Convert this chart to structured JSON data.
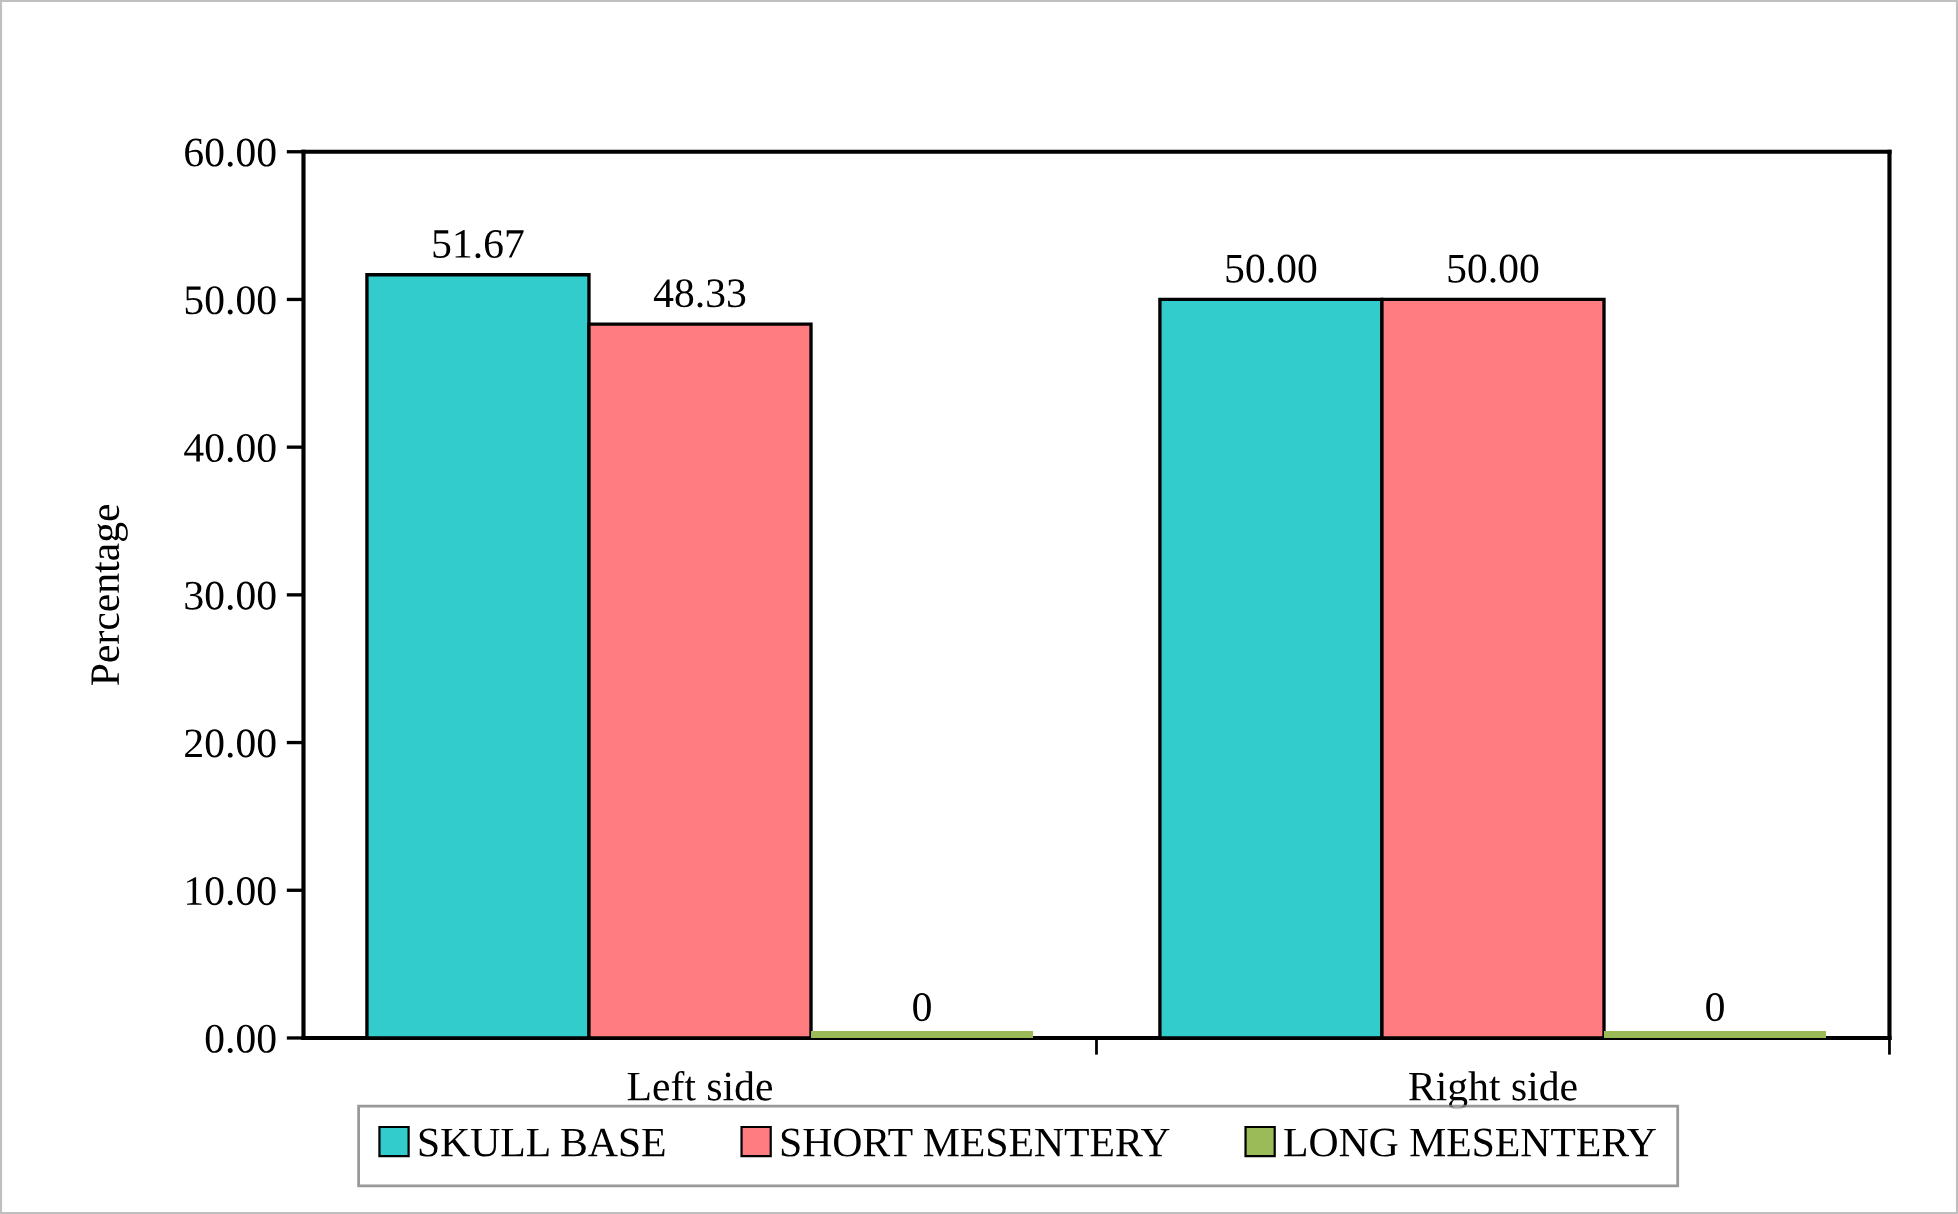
{
  "chart_data": {
    "type": "bar",
    "ylabel": "Percentage",
    "categories": [
      "Left side",
      "Right side"
    ],
    "series": [
      {
        "name": "SKULL BASE",
        "color": "#33cccc",
        "values": [
          51.67,
          50.0
        ],
        "value_labels": [
          "51.67",
          "50.00"
        ]
      },
      {
        "name": "SHORT MESENTERY",
        "color": "#ff7c80",
        "values": [
          48.33,
          50.0
        ],
        "value_labels": [
          "48.33",
          "50.00"
        ]
      },
      {
        "name": "LONG MESENTERY",
        "color": "#9bbb59",
        "values": [
          0,
          0
        ],
        "value_labels": [
          "0",
          "0"
        ]
      }
    ],
    "ylim": [
      0,
      60
    ],
    "yticks": [
      {
        "value": 0,
        "label": "0.00"
      },
      {
        "value": 10,
        "label": "10.00"
      },
      {
        "value": 20,
        "label": "20.00"
      },
      {
        "value": 30,
        "label": "30.00"
      },
      {
        "value": 40,
        "label": "40.00"
      },
      {
        "value": 50,
        "label": "50.00"
      },
      {
        "value": 60,
        "label": "60.00"
      }
    ],
    "grid": false,
    "legend": "bottom"
  }
}
